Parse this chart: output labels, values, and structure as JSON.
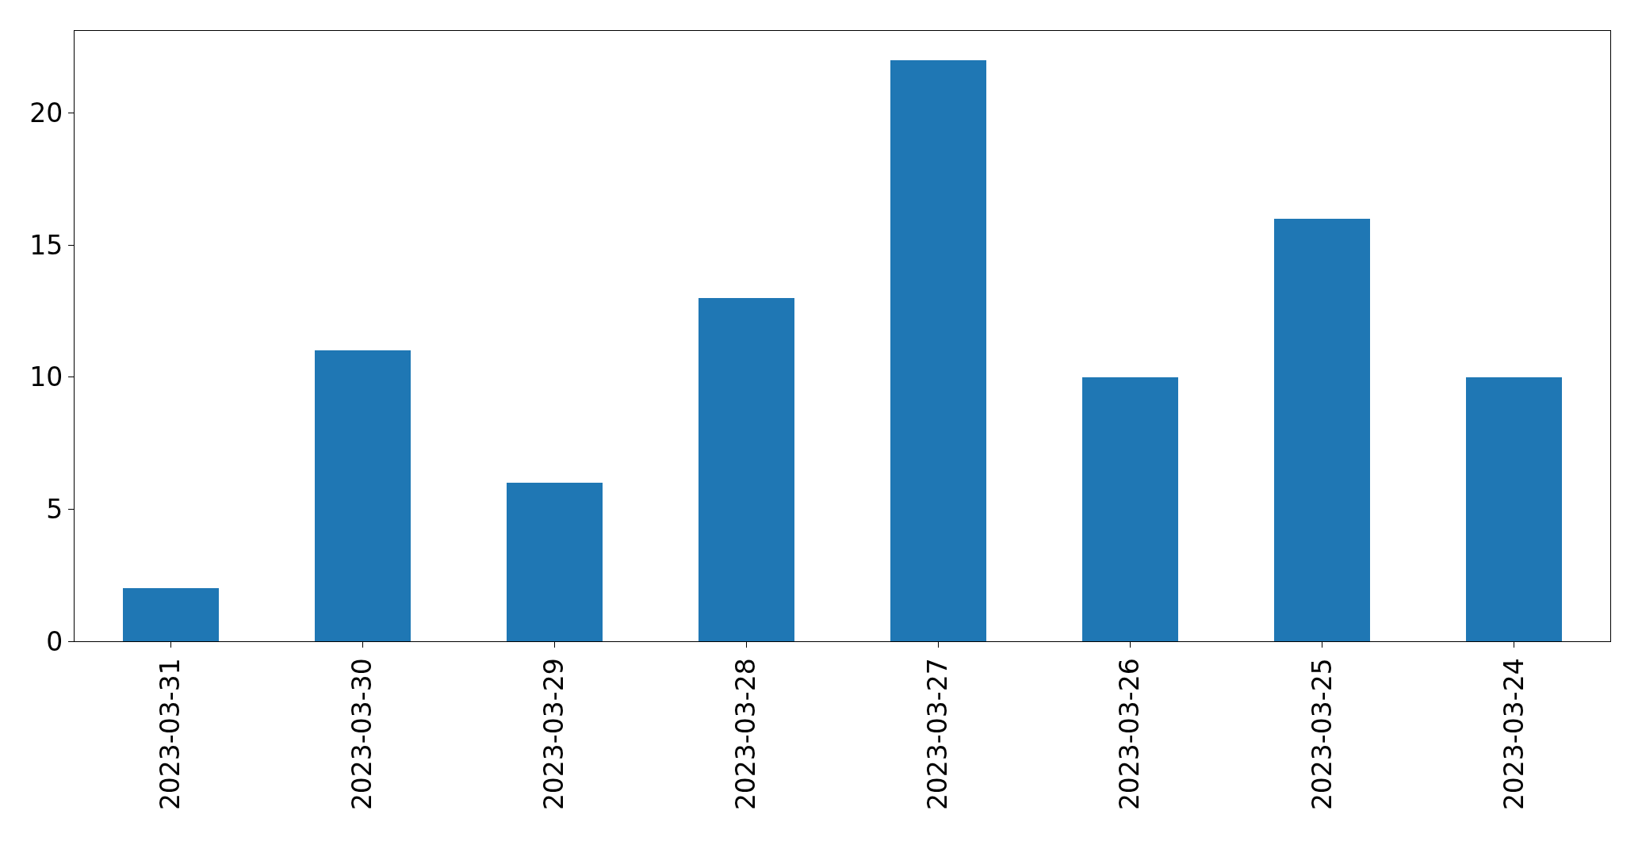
{
  "chart_data": {
    "type": "bar",
    "categories": [
      "2023-03-31",
      "2023-03-30",
      "2023-03-29",
      "2023-03-28",
      "2023-03-27",
      "2023-03-26",
      "2023-03-25",
      "2023-03-24"
    ],
    "values": [
      2,
      11,
      6,
      13,
      22,
      10,
      16,
      10
    ],
    "color": "#1f77b4",
    "ylim": [
      0,
      23.1
    ],
    "yticks": [
      0,
      5,
      10,
      15,
      20
    ]
  }
}
